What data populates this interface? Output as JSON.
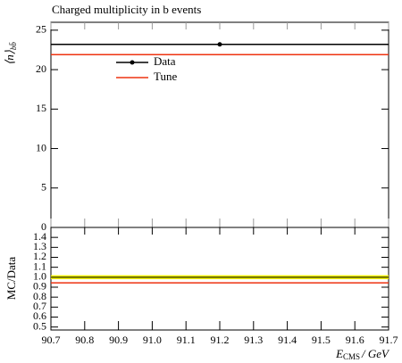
{
  "chart_data": [
    {
      "type": "step",
      "title": "Charged multiplicity in b events",
      "ylabel": "⟨n⟩",
      "ylabel_sub": "bb̄",
      "xlim": [
        90.7,
        91.7
      ],
      "ylim": [
        0,
        26
      ],
      "yticks": [
        0,
        5,
        10,
        15,
        20,
        25
      ],
      "series": [
        {
          "name": "Data",
          "color": "#000000",
          "x": [
            91.2
          ],
          "values": [
            23.2
          ],
          "marker": true
        },
        {
          "name": "Tune",
          "color": "#ee3311",
          "x": [
            91.2
          ],
          "values": [
            21.9
          ],
          "marker": false
        }
      ]
    },
    {
      "type": "ratio",
      "ylabel": "MC/Data",
      "xlabel": "E",
      "xlabel_sub": "CMS",
      "xlabel_unit": "/ GeV",
      "xlim": [
        90.7,
        91.7
      ],
      "ylim": [
        0.47,
        1.5
      ],
      "xticks": [
        90.7,
        90.8,
        90.9,
        {
          "value": 91,
          "label": "91.0"
        },
        91.1,
        91.2,
        91.3,
        91.4,
        91.5,
        91.6,
        91.7
      ],
      "yticks": [
        0.5,
        0.6,
        0.7,
        0.8,
        0.9,
        {
          "value": 1,
          "label": "1.0"
        },
        1.1,
        1.2,
        1.3,
        1.4
      ],
      "series": [
        {
          "name": "Data",
          "color": "#f0f000",
          "x": [
            91.2
          ],
          "values": [
            1.0
          ],
          "errors": [
            0.02
          ]
        },
        {
          "name": "Tune",
          "color": "#ee3311",
          "x": [
            91.2
          ],
          "values": [
            0.944
          ]
        }
      ]
    }
  ]
}
